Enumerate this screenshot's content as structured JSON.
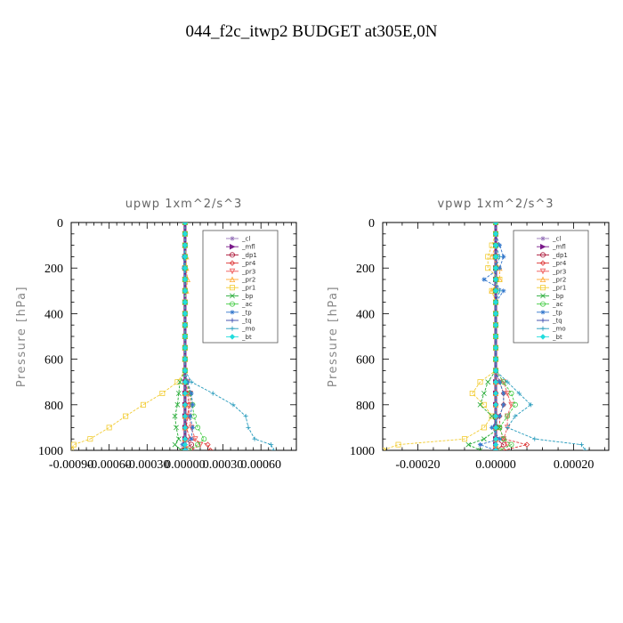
{
  "figure": {
    "title": "044_f2c_itwp2  BUDGET at305E,0N"
  },
  "chart_data": [
    {
      "type": "line",
      "title": "upwp   1xm^2/s^3",
      "ylabel": "Pressure [hPa]",
      "xlabel": "",
      "xlim": [
        -0.0009,
        0.00088
      ],
      "ylim": [
        1000,
        0
      ],
      "y_reversed": true,
      "xticks": [
        -0.0009,
        -0.0006,
        -0.0003,
        0.0,
        0.0003,
        0.0006
      ],
      "xtick_labels": [
        "-0.00090",
        "-0.00060",
        "-0.00030",
        "0.00000",
        "0.00030",
        "0.00060"
      ],
      "yticks": [
        0,
        200,
        400,
        600,
        800,
        1000
      ],
      "ytick_labels": [
        "0",
        "200",
        "400",
        "600",
        "800",
        "1000"
      ],
      "legend_position": "top-right",
      "y": [
        0,
        50,
        100,
        150,
        200,
        250,
        300,
        350,
        400,
        450,
        500,
        550,
        600,
        650,
        700,
        750,
        800,
        850,
        900,
        950,
        975,
        1000
      ],
      "series": [
        {
          "name": "_cl",
          "color": "#9977bb",
          "values": [
            0,
            0,
            0,
            0,
            0,
            0,
            0,
            0,
            0,
            0,
            0,
            0,
            0,
            0,
            0,
            0,
            0,
            0,
            0,
            0,
            0,
            0
          ]
        },
        {
          "name": "_mfl",
          "color": "#7a1a8a",
          "values": [
            0,
            0,
            0,
            0,
            0,
            0,
            0,
            0,
            0,
            0,
            0,
            0,
            0,
            0,
            0,
            0,
            0,
            0,
            0,
            0,
            0,
            0
          ]
        },
        {
          "name": "_dp1",
          "color": "#aa1133",
          "values": [
            0,
            0,
            0,
            0,
            0,
            0,
            0,
            0,
            0,
            0,
            0,
            0,
            0,
            0,
            0,
            0,
            0,
            0,
            0,
            0,
            5e-05,
            -2e-05
          ]
        },
        {
          "name": "_pr4",
          "color": "#dd3333",
          "values": [
            0,
            0,
            0,
            0,
            0,
            0,
            0,
            0,
            0,
            0,
            0,
            0,
            0,
            0,
            1e-05,
            2e-05,
            3e-05,
            2e-05,
            1e-05,
            4e-05,
            0.00018,
            0.0002
          ]
        },
        {
          "name": "_pr3",
          "color": "#ee5555",
          "values": [
            0,
            0,
            0,
            0,
            0,
            0,
            0,
            0,
            0,
            0,
            0,
            0,
            0,
            0,
            2e-05,
            4e-05,
            4e-05,
            3e-05,
            5e-05,
            8e-05,
            0.00012,
            5e-05
          ]
        },
        {
          "name": "_pr2",
          "color": "#ffaa33",
          "values": [
            0,
            0,
            0,
            1e-05,
            1e-05,
            2e-05,
            1e-05,
            0,
            0,
            0,
            0,
            0,
            0,
            0,
            0,
            0,
            0,
            0,
            0,
            0,
            0,
            0
          ]
        },
        {
          "name": "_pr1",
          "color": "#f2cc33",
          "values": [
            0,
            0,
            0,
            0,
            0,
            0,
            0,
            0,
            0,
            0,
            0,
            0,
            0,
            0,
            -6e-05,
            -0.00018,
            -0.00033,
            -0.00047,
            -0.0006,
            -0.00075,
            -0.00088,
            -0.0009
          ]
        },
        {
          "name": "_bp",
          "color": "#22aa33",
          "values": [
            0,
            0,
            0,
            0,
            0,
            0,
            0,
            0,
            0,
            0,
            0,
            0,
            0,
            0,
            -4e-05,
            -5e-05,
            -6e-05,
            -8e-05,
            -7e-05,
            -5e-05,
            -8e-05,
            -3e-05
          ]
        },
        {
          "name": "_ac",
          "color": "#44cc44",
          "values": [
            0,
            0,
            0,
            0,
            0,
            0,
            0,
            0,
            0,
            0,
            0,
            0,
            0,
            0,
            1e-05,
            4e-05,
            6e-05,
            7e-05,
            0.0001,
            0.00015,
            0.0001,
            3e-05
          ]
        },
        {
          "name": "_tp",
          "color": "#3377cc",
          "values": [
            0,
            0,
            0,
            -1e-05,
            -1e-05,
            0,
            0,
            0,
            0,
            0,
            0,
            0,
            0,
            0,
            2e-05,
            5e-05,
            6e-05,
            4e-05,
            6e-05,
            5e-05,
            -2e-05,
            1e-05
          ]
        },
        {
          "name": "_tq",
          "color": "#3344aa",
          "values": [
            0,
            0,
            0,
            0,
            0,
            0,
            0,
            0,
            0,
            0,
            0,
            0,
            0,
            0,
            0,
            0,
            0,
            0,
            0,
            0,
            0,
            0
          ]
        },
        {
          "name": "_mo",
          "color": "#2299bb",
          "values": [
            0,
            0,
            0,
            0,
            0,
            0,
            0,
            0,
            0,
            0,
            0,
            0,
            0,
            0,
            5e-05,
            0.00022,
            0.00038,
            0.00048,
            0.0005,
            0.00055,
            0.00068,
            0.0007
          ]
        },
        {
          "name": "_bt",
          "color": "#22dddd",
          "values": [
            0,
            0,
            0,
            0,
            0,
            0,
            0,
            0,
            0,
            0,
            0,
            0,
            0,
            0,
            0,
            0,
            0,
            0,
            0,
            0,
            0,
            0
          ]
        }
      ]
    },
    {
      "type": "line",
      "title": "vpwp   1xm^2/s^3",
      "ylabel": "Pressure [hPa]",
      "xlabel": "",
      "xlim": [
        -0.00029,
        0.00029
      ],
      "ylim": [
        1000,
        0
      ],
      "y_reversed": true,
      "xticks": [
        -0.0002,
        0.0,
        0.0002
      ],
      "xtick_labels": [
        "-0.00020",
        "0.00000",
        "0.00020"
      ],
      "yticks": [
        0,
        200,
        400,
        600,
        800,
        1000
      ],
      "ytick_labels": [
        "0",
        "200",
        "400",
        "600",
        "800",
        "1000"
      ],
      "legend_position": "top-right",
      "y": [
        0,
        50,
        100,
        150,
        200,
        250,
        300,
        350,
        400,
        450,
        500,
        550,
        600,
        650,
        700,
        750,
        800,
        850,
        900,
        950,
        975,
        1000
      ],
      "series": [
        {
          "name": "_cl",
          "color": "#9977bb",
          "values": [
            0,
            0,
            0,
            0,
            0,
            0,
            0,
            0,
            0,
            0,
            0,
            0,
            0,
            0,
            0,
            0,
            0,
            0,
            0,
            0,
            0,
            0
          ]
        },
        {
          "name": "_mfl",
          "color": "#7a1a8a",
          "values": [
            0,
            0,
            0,
            0,
            0,
            0,
            0,
            0,
            0,
            0,
            0,
            0,
            0,
            0,
            0,
            0,
            0,
            0,
            0,
            0,
            0,
            0
          ]
        },
        {
          "name": "_dp1",
          "color": "#aa1133",
          "values": [
            0,
            0,
            0,
            0,
            0,
            0,
            0,
            0,
            0,
            0,
            0,
            0,
            0,
            0,
            0,
            0,
            0,
            0,
            0,
            0,
            2e-05,
            0
          ]
        },
        {
          "name": "_pr4",
          "color": "#dd3333",
          "values": [
            0,
            0,
            0,
            0,
            0,
            0,
            0,
            0,
            0,
            0,
            0,
            0,
            0,
            0,
            1e-05,
            2e-05,
            2e-05,
            1e-05,
            1e-05,
            2e-05,
            8e-05,
            2e-05
          ]
        },
        {
          "name": "_pr3",
          "color": "#ee5555",
          "values": [
            0,
            0,
            0,
            0,
            0,
            0,
            0,
            0,
            0,
            0,
            0,
            0,
            0,
            0,
            2e-05,
            3e-05,
            4e-05,
            3e-05,
            3e-05,
            2e-05,
            3e-05,
            0
          ]
        },
        {
          "name": "_pr2",
          "color": "#ffaa33",
          "values": [
            0,
            0,
            0,
            -1e-05,
            1e-05,
            1e-05,
            -1e-05,
            0,
            0,
            0,
            0,
            0,
            0,
            0,
            0,
            0,
            0,
            0,
            0,
            0,
            0,
            0
          ]
        },
        {
          "name": "_pr1",
          "color": "#f2cc33",
          "values": [
            0,
            0,
            -1e-05,
            -2e-05,
            -2e-05,
            1e-05,
            -1e-05,
            0,
            0,
            0,
            0,
            0,
            0,
            0,
            -4e-05,
            -6e-05,
            -3e-05,
            -1e-05,
            -3e-05,
            -8e-05,
            -0.00025,
            -0.00029
          ]
        },
        {
          "name": "_bp",
          "color": "#22aa33",
          "values": [
            0,
            0,
            0,
            0,
            0,
            0,
            0,
            0,
            0,
            0,
            0,
            0,
            0,
            0,
            -2e-05,
            -3e-05,
            -4e-05,
            -1e-05,
            1e-05,
            -3e-05,
            -7e-05,
            -4e-05
          ]
        },
        {
          "name": "_ac",
          "color": "#44cc44",
          "values": [
            0,
            0,
            0,
            0,
            0,
            0,
            0,
            0,
            0,
            0,
            0,
            0,
            0,
            0,
            2e-05,
            4e-05,
            5e-05,
            3e-05,
            1e-05,
            2e-05,
            4e-05,
            1e-05
          ]
        },
        {
          "name": "_tp",
          "color": "#3377cc",
          "values": [
            0,
            0,
            1e-05,
            2e-05,
            1e-05,
            -3e-05,
            2e-05,
            0,
            0,
            0,
            0,
            0,
            0,
            0,
            1e-05,
            2e-05,
            2e-05,
            1e-05,
            -1e-05,
            1e-05,
            -4e-05,
            0
          ]
        },
        {
          "name": "_tq",
          "color": "#3344aa",
          "values": [
            0,
            0,
            0,
            0,
            0,
            0,
            0,
            0,
            0,
            0,
            0,
            0,
            0,
            0,
            0,
            0,
            0,
            0,
            0,
            0,
            0,
            0
          ]
        },
        {
          "name": "_mo",
          "color": "#2299bb",
          "values": [
            0,
            0,
            0,
            1e-05,
            0,
            0,
            1e-05,
            0,
            0,
            0,
            0,
            0,
            0,
            0,
            3e-05,
            6e-05,
            9e-05,
            5e-05,
            3e-05,
            0.0001,
            0.00022,
            0.00023
          ]
        },
        {
          "name": "_bt",
          "color": "#22dddd",
          "values": [
            0,
            0,
            0,
            0,
            0,
            0,
            0,
            0,
            0,
            0,
            0,
            0,
            0,
            0,
            0,
            0,
            0,
            0,
            0,
            0,
            0,
            0
          ]
        }
      ]
    }
  ]
}
